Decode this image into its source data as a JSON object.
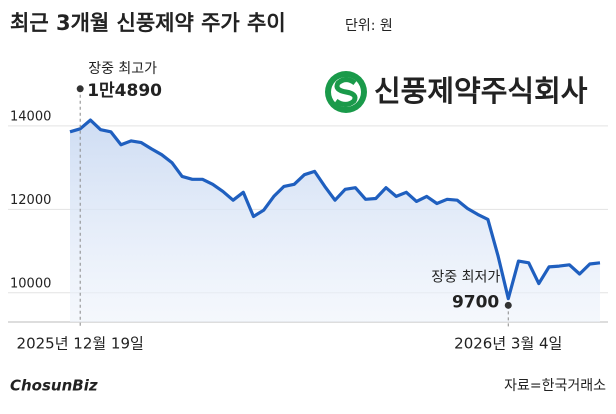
{
  "chart_data": {
    "type": "line",
    "title": "최근 3개월 신풍제약 주가 추이",
    "subtitle": "단위: 원",
    "logo": "신풍제약주식회사",
    "source": "자료=한국거래소",
    "watermark": "ChosunBiz",
    "categories": [
      null,
      "2025년 12월 19일",
      null,
      null,
      null,
      null,
      null,
      null,
      null,
      null,
      null,
      null,
      null,
      null,
      null,
      null,
      null,
      null,
      null,
      null,
      null,
      null,
      null,
      null,
      null,
      null,
      null,
      null,
      null,
      null,
      null,
      null,
      null,
      null,
      null,
      null,
      null,
      null,
      null,
      null,
      null,
      null,
      null,
      "2026년 3월 4일",
      null,
      null,
      null,
      null,
      null,
      null,
      null,
      null,
      null
    ],
    "series": [
      {
        "name": "신풍제약",
        "color": "#1f5fbf",
        "values": [
          13860,
          13930,
          14140,
          13910,
          13860,
          13550,
          13640,
          13600,
          13450,
          13310,
          13120,
          12790,
          12720,
          12720,
          12600,
          12430,
          12220,
          12410,
          11830,
          11980,
          12310,
          12550,
          12600,
          12830,
          12910,
          12550,
          12220,
          12480,
          12520,
          12240,
          12260,
          12520,
          12310,
          12410,
          12190,
          12310,
          12140,
          12240,
          12220,
          12020,
          11880,
          11760,
          10880,
          9860,
          10760,
          10720,
          10220,
          10620,
          10640,
          10670,
          10450,
          10690,
          10720
        ]
      }
    ],
    "annotations": [
      {
        "text": "장중 최고가",
        "value": 14890,
        "value_label": "1만4890"
      },
      {
        "text": "장중 최저가",
        "value": 9700,
        "value_label": "9700"
      }
    ],
    "ylim": [
      9300,
      15700
    ],
    "yticks": [
      10000,
      12000,
      14000
    ],
    "grid": true
  }
}
